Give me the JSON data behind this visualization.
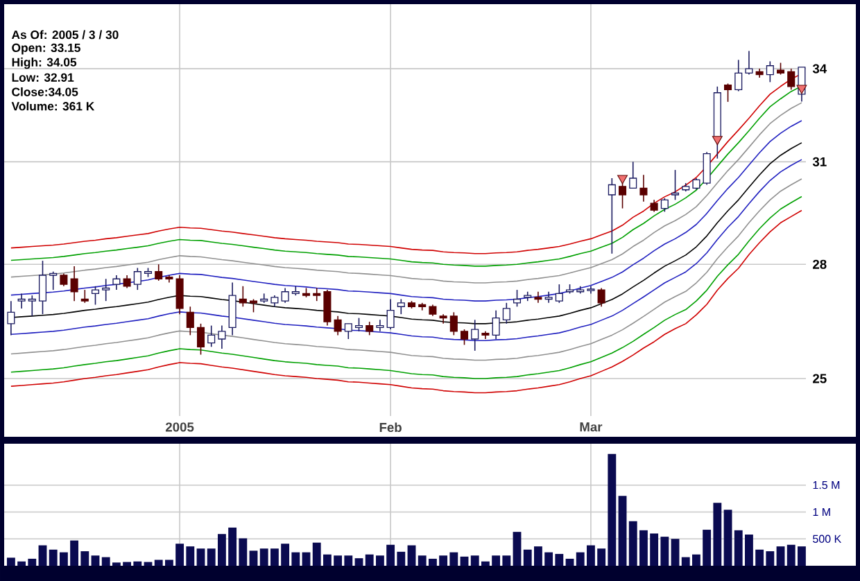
{
  "chart_data": [
    {
      "type": "candlestick",
      "categories": [
        null,
        null,
        null,
        null,
        null,
        null,
        null,
        null,
        null,
        null,
        null,
        null,
        null,
        null,
        null,
        null,
        "2005",
        null,
        null,
        null,
        null,
        null,
        null,
        null,
        null,
        null,
        null,
        null,
        null,
        null,
        null,
        null,
        null,
        null,
        null,
        null,
        "Feb",
        null,
        null,
        null,
        null,
        null,
        null,
        null,
        null,
        null,
        null,
        null,
        null,
        null,
        null,
        null,
        null,
        null,
        null,
        "Mar",
        null,
        null,
        null,
        null,
        null,
        null,
        null,
        null,
        null,
        null,
        null,
        null,
        null,
        null,
        null,
        null,
        null,
        null,
        null,
        null
      ],
      "ohlc": [
        [
          26.4,
          27.0,
          26.1,
          26.7
        ],
        [
          27.0,
          27.2,
          26.8,
          27.05
        ],
        [
          27.0,
          27.15,
          26.6,
          27.05
        ],
        [
          27.0,
          28.1,
          26.65,
          27.7
        ],
        [
          27.7,
          27.8,
          27.3,
          27.75
        ],
        [
          27.7,
          27.75,
          27.4,
          27.45
        ],
        [
          27.6,
          27.95,
          27.0,
          27.25
        ],
        [
          27.05,
          27.3,
          26.95,
          27.0
        ],
        [
          27.2,
          27.4,
          26.9,
          27.3
        ],
        [
          27.3,
          27.6,
          27.0,
          27.35
        ],
        [
          27.45,
          27.7,
          27.3,
          27.6
        ],
        [
          27.6,
          27.7,
          27.35,
          27.4
        ],
        [
          27.45,
          27.9,
          27.3,
          27.8
        ],
        [
          27.75,
          27.9,
          27.65,
          27.8
        ],
        [
          27.8,
          28.0,
          27.55,
          27.6
        ],
        [
          27.65,
          27.7,
          27.5,
          27.6
        ],
        [
          27.6,
          27.7,
          26.65,
          26.8
        ],
        [
          26.7,
          26.85,
          26.1,
          26.3
        ],
        [
          26.3,
          26.4,
          25.6,
          25.8
        ],
        [
          25.9,
          26.35,
          25.8,
          26.1
        ],
        [
          26.0,
          26.35,
          25.75,
          26.2
        ],
        [
          26.3,
          27.5,
          26.1,
          27.15
        ],
        [
          27.05,
          27.4,
          26.85,
          26.95
        ],
        [
          27.0,
          27.05,
          26.7,
          26.95
        ],
        [
          27.0,
          27.2,
          26.95,
          27.05
        ],
        [
          26.95,
          27.15,
          26.85,
          27.1
        ],
        [
          27.0,
          27.35,
          26.95,
          27.25
        ],
        [
          27.2,
          27.4,
          27.15,
          27.25
        ],
        [
          27.2,
          27.35,
          27.1,
          27.15
        ],
        [
          27.2,
          27.35,
          27.0,
          27.15
        ],
        [
          27.25,
          27.3,
          26.35,
          26.45
        ],
        [
          26.5,
          26.6,
          26.1,
          26.2
        ],
        [
          26.2,
          26.4,
          26.0,
          26.4
        ],
        [
          26.3,
          26.55,
          26.2,
          26.35
        ],
        [
          26.35,
          26.45,
          26.1,
          26.2
        ],
        [
          26.3,
          26.5,
          26.2,
          26.35
        ],
        [
          26.3,
          27.05,
          26.25,
          26.75
        ],
        [
          26.85,
          27.05,
          26.65,
          26.95
        ],
        [
          26.95,
          27.0,
          26.8,
          26.85
        ],
        [
          26.9,
          26.95,
          26.75,
          26.85
        ],
        [
          26.85,
          26.9,
          26.6,
          26.65
        ],
        [
          26.6,
          26.65,
          26.4,
          26.55
        ],
        [
          26.6,
          26.7,
          26.1,
          26.2
        ],
        [
          26.2,
          26.25,
          25.85,
          26.0
        ],
        [
          26.0,
          26.5,
          25.7,
          26.25
        ],
        [
          26.15,
          26.2,
          26.0,
          26.1
        ],
        [
          26.1,
          26.75,
          26.0,
          26.55
        ],
        [
          26.5,
          26.95,
          26.4,
          26.8
        ],
        [
          26.95,
          27.3,
          26.85,
          27.05
        ],
        [
          27.1,
          27.25,
          27.0,
          27.15
        ],
        [
          27.1,
          27.25,
          26.95,
          27.05
        ],
        [
          27.05,
          27.25,
          26.95,
          27.1
        ],
        [
          27.0,
          27.45,
          26.95,
          27.2
        ],
        [
          27.25,
          27.45,
          27.2,
          27.3
        ],
        [
          27.25,
          27.4,
          27.2,
          27.3
        ],
        [
          27.28,
          27.4,
          27.2,
          27.32
        ],
        [
          27.3,
          27.35,
          26.85,
          26.95
        ],
        [
          30.0,
          30.5,
          28.3,
          30.3
        ],
        [
          30.25,
          30.5,
          29.6,
          30.0
        ],
        [
          30.2,
          31.0,
          30.2,
          30.5
        ],
        [
          30.2,
          30.6,
          29.8,
          30.0
        ],
        [
          29.75,
          29.85,
          29.5,
          29.55
        ],
        [
          29.6,
          29.9,
          29.5,
          29.85
        ],
        [
          30.0,
          30.75,
          29.85,
          30.05
        ],
        [
          30.15,
          30.35,
          30.1,
          30.25
        ],
        [
          30.2,
          30.5,
          30.15,
          30.45
        ],
        [
          30.35,
          31.3,
          30.3,
          31.25
        ],
        [
          31.75,
          33.4,
          31.1,
          33.2
        ],
        [
          33.45,
          33.5,
          32.9,
          33.3
        ],
        [
          33.3,
          34.3,
          33.25,
          33.85
        ],
        [
          33.85,
          34.6,
          33.8,
          34.0
        ],
        [
          33.9,
          34.0,
          33.7,
          33.8
        ],
        [
          33.8,
          34.25,
          33.55,
          34.1
        ],
        [
          33.95,
          34.2,
          33.8,
          33.85
        ],
        [
          33.9,
          34.0,
          33.3,
          33.4
        ],
        [
          33.15,
          34.05,
          32.91,
          34.05
        ]
      ],
      "series": [
        {
          "type": "line",
          "color": "#d00000",
          "values": [
            28.46,
            28.48,
            28.5,
            28.52,
            28.54,
            28.57,
            28.61,
            28.65,
            28.68,
            28.72,
            28.75,
            28.79,
            28.83,
            28.87,
            28.94,
            29.0,
            29.05,
            29.03,
            29.02,
            28.98,
            28.94,
            28.91,
            28.87,
            28.83,
            28.79,
            28.75,
            28.72,
            28.7,
            28.68,
            28.65,
            28.63,
            28.61,
            28.57,
            28.56,
            28.54,
            28.52,
            28.5,
            28.46,
            28.42,
            28.4,
            28.39,
            28.35,
            28.33,
            28.32,
            28.3,
            28.3,
            28.32,
            28.33,
            28.35,
            28.39,
            28.42,
            28.46,
            28.5,
            28.57,
            28.65,
            28.72,
            28.83,
            28.94,
            29.11,
            29.34,
            29.52,
            29.75,
            29.94,
            30.09,
            30.29,
            30.52,
            30.86,
            31.24,
            31.63,
            31.99,
            32.37,
            32.77,
            33.15,
            33.41,
            33.65,
            33.83
          ]
        },
        {
          "type": "line",
          "color": "#00a000",
          "values": [
            28.11,
            28.13,
            28.15,
            28.17,
            28.19,
            28.22,
            28.26,
            28.3,
            28.33,
            28.37,
            28.4,
            28.44,
            28.48,
            28.52,
            28.59,
            28.65,
            28.7,
            28.68,
            28.67,
            28.63,
            28.59,
            28.56,
            28.52,
            28.48,
            28.44,
            28.4,
            28.37,
            28.35,
            28.33,
            28.3,
            28.28,
            28.26,
            28.22,
            28.21,
            28.19,
            28.17,
            28.15,
            28.11,
            28.07,
            28.05,
            28.04,
            28.0,
            27.98,
            27.97,
            27.95,
            27.95,
            27.97,
            27.98,
            28.0,
            28.04,
            28.07,
            28.11,
            28.15,
            28.22,
            28.3,
            28.37,
            28.48,
            28.59,
            28.76,
            28.98,
            29.16,
            29.38,
            29.57,
            29.72,
            29.91,
            30.14,
            30.48,
            30.86,
            31.24,
            31.59,
            31.97,
            32.37,
            32.74,
            33.0,
            33.24,
            33.42
          ]
        },
        {
          "type": "line",
          "color": "#909090",
          "values": [
            27.65,
            27.67,
            27.69,
            27.71,
            27.73,
            27.76,
            27.8,
            27.84,
            27.87,
            27.91,
            27.94,
            27.98,
            28.02,
            28.06,
            28.13,
            28.19,
            28.24,
            28.22,
            28.21,
            28.17,
            28.13,
            28.1,
            28.06,
            28.02,
            27.98,
            27.94,
            27.91,
            27.89,
            27.87,
            27.84,
            27.82,
            27.8,
            27.76,
            27.75,
            27.73,
            27.71,
            27.69,
            27.65,
            27.61,
            27.59,
            27.58,
            27.54,
            27.52,
            27.51,
            27.49,
            27.49,
            27.51,
            27.52,
            27.54,
            27.58,
            27.61,
            27.65,
            27.69,
            27.76,
            27.84,
            27.91,
            28.02,
            28.13,
            28.29,
            28.5,
            28.68,
            28.9,
            29.09,
            29.24,
            29.42,
            29.65,
            29.98,
            30.36,
            30.73,
            31.07,
            31.45,
            31.84,
            32.2,
            32.46,
            32.69,
            32.87
          ]
        },
        {
          "type": "line",
          "color": "#2020c0",
          "values": [
            27.16,
            27.18,
            27.2,
            27.22,
            27.24,
            27.27,
            27.31,
            27.35,
            27.38,
            27.42,
            27.45,
            27.49,
            27.53,
            27.57,
            27.64,
            27.7,
            27.75,
            27.73,
            27.72,
            27.68,
            27.64,
            27.61,
            27.57,
            27.53,
            27.49,
            27.45,
            27.42,
            27.4,
            27.38,
            27.35,
            27.33,
            27.31,
            27.27,
            27.26,
            27.24,
            27.22,
            27.2,
            27.16,
            27.12,
            27.1,
            27.09,
            27.05,
            27.03,
            27.02,
            27.0,
            27.0,
            27.02,
            27.03,
            27.05,
            27.09,
            27.12,
            27.16,
            27.2,
            27.27,
            27.35,
            27.42,
            27.53,
            27.64,
            27.79,
            27.99,
            28.17,
            28.38,
            28.57,
            28.72,
            28.9,
            29.13,
            29.45,
            29.83,
            30.19,
            30.52,
            30.9,
            31.28,
            31.63,
            31.89,
            32.11,
            32.29
          ]
        },
        {
          "type": "line",
          "color": "#000000",
          "values": [
            26.56,
            26.58,
            26.6,
            26.62,
            26.64,
            26.67,
            26.71,
            26.75,
            26.78,
            26.82,
            26.85,
            26.89,
            26.93,
            26.97,
            27.04,
            27.1,
            27.15,
            27.13,
            27.12,
            27.08,
            27.04,
            27.01,
            26.97,
            26.93,
            26.89,
            26.85,
            26.82,
            26.8,
            26.78,
            26.75,
            26.73,
            26.71,
            26.67,
            26.66,
            26.64,
            26.62,
            26.6,
            26.56,
            26.52,
            26.5,
            26.49,
            26.45,
            26.43,
            26.42,
            26.4,
            26.4,
            26.42,
            26.43,
            26.45,
            26.49,
            26.52,
            26.56,
            26.6,
            26.67,
            26.75,
            26.82,
            26.93,
            27.04,
            27.19,
            27.38,
            27.56,
            27.76,
            27.95,
            28.1,
            28.26,
            28.49,
            28.8,
            29.18,
            29.53,
            29.85,
            30.23,
            30.6,
            30.94,
            31.2,
            31.41,
            31.59
          ]
        },
        {
          "type": "line",
          "color": "#2020c0",
          "values": [
            26.12,
            26.14,
            26.16,
            26.18,
            26.2,
            26.23,
            26.27,
            26.31,
            26.34,
            26.38,
            26.41,
            26.45,
            26.49,
            26.53,
            26.6,
            26.66,
            26.71,
            26.69,
            26.68,
            26.64,
            26.6,
            26.57,
            26.53,
            26.49,
            26.45,
            26.41,
            26.38,
            26.36,
            26.34,
            26.31,
            26.29,
            26.27,
            26.23,
            26.22,
            26.2,
            26.18,
            26.16,
            26.12,
            26.08,
            26.06,
            26.05,
            26.01,
            25.99,
            25.98,
            25.96,
            25.96,
            25.98,
            25.99,
            26.01,
            26.05,
            26.08,
            26.12,
            26.16,
            26.23,
            26.31,
            26.38,
            26.49,
            26.6,
            26.75,
            26.93,
            27.11,
            27.3,
            27.49,
            27.64,
            27.79,
            28.02,
            28.32,
            28.7,
            29.05,
            29.36,
            29.74,
            30.1,
            30.43,
            30.69,
            30.89,
            31.07
          ]
        },
        {
          "type": "line",
          "color": "#909090",
          "values": [
            25.62,
            25.64,
            25.66,
            25.68,
            25.7,
            25.73,
            25.77,
            25.81,
            25.84,
            25.88,
            25.91,
            25.95,
            25.99,
            26.03,
            26.1,
            26.16,
            26.21,
            26.19,
            26.18,
            26.14,
            26.1,
            26.07,
            26.03,
            25.99,
            25.95,
            25.91,
            25.88,
            25.86,
            25.84,
            25.81,
            25.79,
            25.77,
            25.73,
            25.72,
            25.7,
            25.68,
            25.66,
            25.62,
            25.58,
            25.56,
            25.55,
            25.51,
            25.49,
            25.48,
            25.46,
            25.46,
            25.48,
            25.49,
            25.51,
            25.55,
            25.58,
            25.62,
            25.66,
            25.73,
            25.81,
            25.88,
            25.99,
            26.1,
            26.24,
            26.41,
            26.59,
            26.78,
            26.97,
            27.12,
            27.26,
            27.49,
            27.78,
            28.16,
            28.49,
            28.8,
            29.18,
            29.53,
            29.85,
            30.11,
            30.3,
            30.48
          ]
        },
        {
          "type": "line",
          "color": "#00a000",
          "values": [
            25.16,
            25.18,
            25.2,
            25.22,
            25.24,
            25.27,
            25.31,
            25.35,
            25.38,
            25.42,
            25.45,
            25.49,
            25.53,
            25.57,
            25.64,
            25.7,
            25.75,
            25.73,
            25.72,
            25.68,
            25.64,
            25.61,
            25.57,
            25.53,
            25.49,
            25.45,
            25.42,
            25.4,
            25.38,
            25.35,
            25.33,
            25.31,
            25.27,
            25.26,
            25.24,
            25.22,
            25.2,
            25.16,
            25.12,
            25.1,
            25.09,
            25.05,
            25.03,
            25.02,
            25.0,
            25.0,
            25.02,
            25.03,
            25.05,
            25.09,
            25.12,
            25.16,
            25.2,
            25.27,
            25.35,
            25.42,
            25.53,
            25.64,
            25.78,
            25.94,
            26.12,
            26.3,
            26.49,
            26.64,
            26.77,
            27.0,
            27.29,
            27.67,
            27.99,
            28.28,
            28.66,
            29.01,
            29.32,
            29.58,
            29.77,
            29.95
          ]
        },
        {
          "type": "line",
          "color": "#d00000",
          "values": [
            24.81,
            24.83,
            24.85,
            24.87,
            24.89,
            24.92,
            24.96,
            25.0,
            25.03,
            25.07,
            25.1,
            25.14,
            25.18,
            25.22,
            25.29,
            25.35,
            25.4,
            25.38,
            25.37,
            25.33,
            25.29,
            25.26,
            25.22,
            25.18,
            25.14,
            25.1,
            25.07,
            25.05,
            25.03,
            25.0,
            24.98,
            24.96,
            24.92,
            24.91,
            24.89,
            24.87,
            24.85,
            24.81,
            24.77,
            24.75,
            24.74,
            24.7,
            24.68,
            24.67,
            24.65,
            24.65,
            24.67,
            24.68,
            24.7,
            24.74,
            24.77,
            24.81,
            24.85,
            24.92,
            25.0,
            25.07,
            25.18,
            25.29,
            25.43,
            25.59,
            25.77,
            25.93,
            26.12,
            26.27,
            26.4,
            26.63,
            26.91,
            27.29,
            27.61,
            27.89,
            28.27,
            28.61,
            28.92,
            29.18,
            29.36,
            29.54
          ]
        },
        {
          "type": "scatter",
          "color": "#f07070",
          "marker": "triangle",
          "values": [
            null,
            null,
            null,
            null,
            null,
            null,
            null,
            null,
            null,
            null,
            null,
            null,
            null,
            null,
            null,
            null,
            null,
            null,
            null,
            null,
            null,
            null,
            null,
            null,
            null,
            null,
            null,
            null,
            null,
            null,
            null,
            null,
            null,
            null,
            null,
            null,
            null,
            null,
            null,
            null,
            null,
            null,
            null,
            null,
            null,
            null,
            null,
            null,
            null,
            null,
            null,
            null,
            null,
            null,
            null,
            null,
            null,
            null,
            30.5,
            null,
            null,
            null,
            null,
            null,
            null,
            null,
            null,
            31.7,
            null,
            null,
            null,
            null,
            null,
            null,
            null,
            33.35
          ]
        }
      ],
      "ylim": [
        24.09,
        36.25
      ],
      "yticks": [
        25,
        28,
        31,
        34
      ],
      "log": "y",
      "grid": true,
      "annotations": [
        "As Of: 2005 / 3 / 30",
        "Open: 33.15",
        "High: 34.05",
        "Low: 32.91",
        "Close:34.05",
        "Volume: 361 K"
      ]
    },
    {
      "type": "bar",
      "categories": [
        null,
        null,
        null,
        null,
        null,
        null,
        null,
        null,
        null,
        null,
        null,
        null,
        null,
        null,
        null,
        null,
        null,
        null,
        null,
        null,
        null,
        null,
        null,
        null,
        null,
        null,
        null,
        null,
        null,
        null,
        null,
        null,
        null,
        null,
        null,
        null,
        null,
        null,
        null,
        null,
        null,
        null,
        null,
        null,
        null,
        null,
        null,
        null,
        null,
        null,
        null,
        null,
        null,
        null,
        null,
        null,
        null,
        null,
        null,
        null,
        null,
        null,
        null,
        null,
        null,
        null,
        null,
        null,
        null,
        null,
        null,
        null,
        null,
        null,
        null,
        null
      ],
      "values": [
        150000,
        80000,
        130000,
        380000,
        300000,
        250000,
        470000,
        270000,
        190000,
        160000,
        60000,
        70000,
        80000,
        70000,
        110000,
        110000,
        410000,
        360000,
        320000,
        320000,
        590000,
        710000,
        510000,
        280000,
        320000,
        320000,
        410000,
        250000,
        250000,
        430000,
        210000,
        190000,
        190000,
        140000,
        210000,
        190000,
        390000,
        260000,
        380000,
        190000,
        130000,
        190000,
        250000,
        170000,
        190000,
        80000,
        190000,
        190000,
        630000,
        300000,
        360000,
        250000,
        220000,
        130000,
        250000,
        380000,
        320000,
        2080000,
        1300000,
        830000,
        660000,
        600000,
        540000,
        500000,
        160000,
        210000,
        670000,
        1170000,
        1040000,
        660000,
        580000,
        300000,
        270000,
        360000,
        390000,
        360000
      ],
      "color": "#0a0a50",
      "ylim": [
        0,
        2270000
      ],
      "yticks": [
        {
          "value": 500000,
          "label": "500 K"
        },
        {
          "value": 1000000,
          "label": "1 M"
        },
        {
          "value": 1500000,
          "label": "1.5 M"
        }
      ],
      "grid": true,
      "tick_labels": "y"
    }
  ]
}
